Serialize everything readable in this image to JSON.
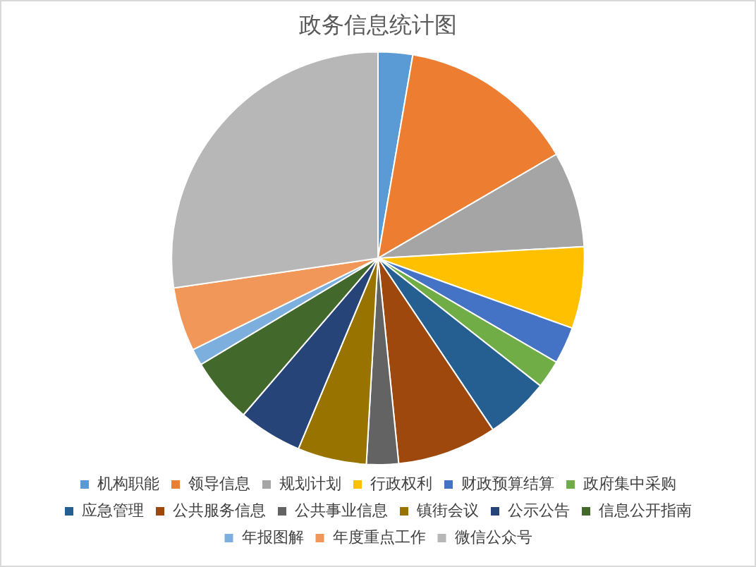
{
  "chart_data": {
    "type": "pie",
    "title": "政务信息统计图",
    "categories": [
      "机构职能",
      "领导信息",
      "规划计划",
      "行政权利",
      "财政预算结算",
      "政府集中采购",
      "应急管理",
      "公共服务信息",
      "公共事业信息",
      "镇街会议",
      "公示公告",
      "信息公开指南",
      "年报图解",
      "年度重点工作",
      "微信公众号"
    ],
    "values": [
      2.7,
      13.9,
      7.5,
      6.4,
      2.9,
      2.2,
      5,
      7.8,
      2.5,
      5.4,
      5,
      5.1,
      1.3,
      5,
      27.3
    ],
    "colors": [
      "#5b9bd5",
      "#ed7d31",
      "#a5a5a5",
      "#ffc000",
      "#4472c4",
      "#70ad47",
      "#255e91",
      "#9e480e",
      "#636363",
      "#997300",
      "#264478",
      "#43682b",
      "#7cafdd",
      "#f1975a",
      "#b7b7b7"
    ],
    "legend": "bottom"
  }
}
